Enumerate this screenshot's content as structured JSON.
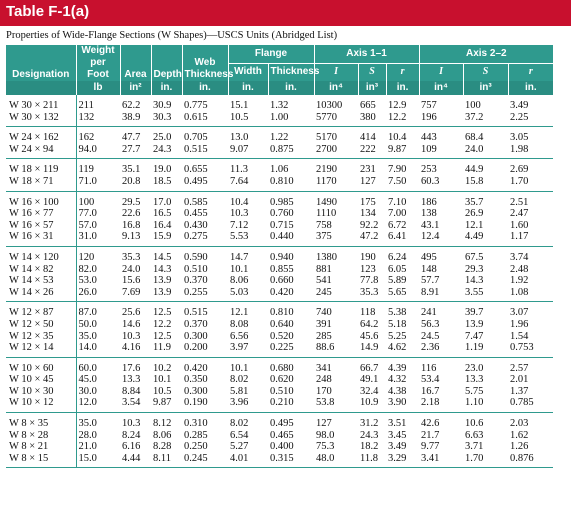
{
  "title": "Table F-1(a)",
  "caption": "Properties of Wide-Flange Sections (W Shapes)—USCS Units (Abridged List)",
  "headers": {
    "designation": "Designation",
    "weight": "Weight per Foot",
    "area": "Area",
    "depth": "Depth",
    "web": "Web Thickness",
    "flange": "Flange",
    "flange_width": "Width",
    "flange_thickness": "Thickness",
    "axis11": "Axis 1–1",
    "axis22": "Axis 2–2",
    "I": "I",
    "S": "S",
    "r": "r"
  },
  "units": [
    "lb",
    "in²",
    "in.",
    "in.",
    "in.",
    "in.",
    "in⁴",
    "in³",
    "in.",
    "in⁴",
    "in³",
    "in."
  ],
  "groups": [
    [
      [
        "W 30 × 211",
        "211",
        "62.2",
        "30.9",
        "0.775",
        "15.1",
        "1.32",
        "10300",
        "665",
        "12.9",
        "757",
        "100",
        "3.49"
      ],
      [
        "W 30 × 132",
        "132",
        "38.9",
        "30.3",
        "0.615",
        "10.5",
        "1.00",
        "5770",
        "380",
        "12.2",
        "196",
        "37.2",
        "2.25"
      ]
    ],
    [
      [
        "W 24 × 162",
        "162",
        "47.7",
        "25.0",
        "0.705",
        "13.0",
        "1.22",
        "5170",
        "414",
        "10.4",
        "443",
        "68.4",
        "3.05"
      ],
      [
        "W 24 × 94",
        "94.0",
        "27.7",
        "24.3",
        "0.515",
        "9.07",
        "0.875",
        "2700",
        "222",
        "9.87",
        "109",
        "24.0",
        "1.98"
      ]
    ],
    [
      [
        "W 18 × 119",
        "119",
        "35.1",
        "19.0",
        "0.655",
        "11.3",
        "1.06",
        "2190",
        "231",
        "7.90",
        "253",
        "44.9",
        "2.69"
      ],
      [
        "W 18 × 71",
        "71.0",
        "20.8",
        "18.5",
        "0.495",
        "7.64",
        "0.810",
        "1170",
        "127",
        "7.50",
        "60.3",
        "15.8",
        "1.70"
      ]
    ],
    [
      [
        "W 16 × 100",
        "100",
        "29.5",
        "17.0",
        "0.585",
        "10.4",
        "0.985",
        "1490",
        "175",
        "7.10",
        "186",
        "35.7",
        "2.51"
      ],
      [
        "W 16 × 77",
        "77.0",
        "22.6",
        "16.5",
        "0.455",
        "10.3",
        "0.760",
        "1110",
        "134",
        "7.00",
        "138",
        "26.9",
        "2.47"
      ],
      [
        "W 16 × 57",
        "57.0",
        "16.8",
        "16.4",
        "0.430",
        "7.12",
        "0.715",
        "758",
        "92.2",
        "6.72",
        "43.1",
        "12.1",
        "1.60"
      ],
      [
        "W 16 × 31",
        "31.0",
        "9.13",
        "15.9",
        "0.275",
        "5.53",
        "0.440",
        "375",
        "47.2",
        "6.41",
        "12.4",
        "4.49",
        "1.17"
      ]
    ],
    [
      [
        "W 14 × 120",
        "120",
        "35.3",
        "14.5",
        "0.590",
        "14.7",
        "0.940",
        "1380",
        "190",
        "6.24",
        "495",
        "67.5",
        "3.74"
      ],
      [
        "W 14 × 82",
        "82.0",
        "24.0",
        "14.3",
        "0.510",
        "10.1",
        "0.855",
        "881",
        "123",
        "6.05",
        "148",
        "29.3",
        "2.48"
      ],
      [
        "W 14 × 53",
        "53.0",
        "15.6",
        "13.9",
        "0.370",
        "8.06",
        "0.660",
        "541",
        "77.8",
        "5.89",
        "57.7",
        "14.3",
        "1.92"
      ],
      [
        "W 14 × 26",
        "26.0",
        "7.69",
        "13.9",
        "0.255",
        "5.03",
        "0.420",
        "245",
        "35.3",
        "5.65",
        "8.91",
        "3.55",
        "1.08"
      ]
    ],
    [
      [
        "W 12 × 87",
        "87.0",
        "25.6",
        "12.5",
        "0.515",
        "12.1",
        "0.810",
        "740",
        "118",
        "5.38",
        "241",
        "39.7",
        "3.07"
      ],
      [
        "W 12 × 50",
        "50.0",
        "14.6",
        "12.2",
        "0.370",
        "8.08",
        "0.640",
        "391",
        "64.2",
        "5.18",
        "56.3",
        "13.9",
        "1.96"
      ],
      [
        "W 12 × 35",
        "35.0",
        "10.3",
        "12.5",
        "0.300",
        "6.56",
        "0.520",
        "285",
        "45.6",
        "5.25",
        "24.5",
        "7.47",
        "1.54"
      ],
      [
        "W 12 × 14",
        "14.0",
        "4.16",
        "11.9",
        "0.200",
        "3.97",
        "0.225",
        "88.6",
        "14.9",
        "4.62",
        "2.36",
        "1.19",
        "0.753"
      ]
    ],
    [
      [
        "W 10 × 60",
        "60.0",
        "17.6",
        "10.2",
        "0.420",
        "10.1",
        "0.680",
        "341",
        "66.7",
        "4.39",
        "116",
        "23.0",
        "2.57"
      ],
      [
        "W 10 × 45",
        "45.0",
        "13.3",
        "10.1",
        "0.350",
        "8.02",
        "0.620",
        "248",
        "49.1",
        "4.32",
        "53.4",
        "13.3",
        "2.01"
      ],
      [
        "W 10 × 30",
        "30.0",
        "8.84",
        "10.5",
        "0.300",
        "5.81",
        "0.510",
        "170",
        "32.4",
        "4.38",
        "16.7",
        "5.75",
        "1.37"
      ],
      [
        "W 10 × 12",
        "12.0",
        "3.54",
        "9.87",
        "0.190",
        "3.96",
        "0.210",
        "53.8",
        "10.9",
        "3.90",
        "2.18",
        "1.10",
        "0.785"
      ]
    ],
    [
      [
        "W 8 × 35",
        "35.0",
        "10.3",
        "8.12",
        "0.310",
        "8.02",
        "0.495",
        "127",
        "31.2",
        "3.51",
        "42.6",
        "10.6",
        "2.03"
      ],
      [
        "W 8 × 28",
        "28.0",
        "8.24",
        "8.06",
        "0.285",
        "6.54",
        "0.465",
        "98.0",
        "24.3",
        "3.45",
        "21.7",
        "6.63",
        "1.62"
      ],
      [
        "W 8 × 21",
        "21.0",
        "6.16",
        "8.28",
        "0.250",
        "5.27",
        "0.400",
        "75.3",
        "18.2",
        "3.49",
        "9.77",
        "3.71",
        "1.26"
      ],
      [
        "W 8 × 15",
        "15.0",
        "4.44",
        "8.11",
        "0.245",
        "4.01",
        "0.315",
        "48.0",
        "11.8",
        "3.29",
        "3.41",
        "1.70",
        "0.876"
      ]
    ]
  ]
}
